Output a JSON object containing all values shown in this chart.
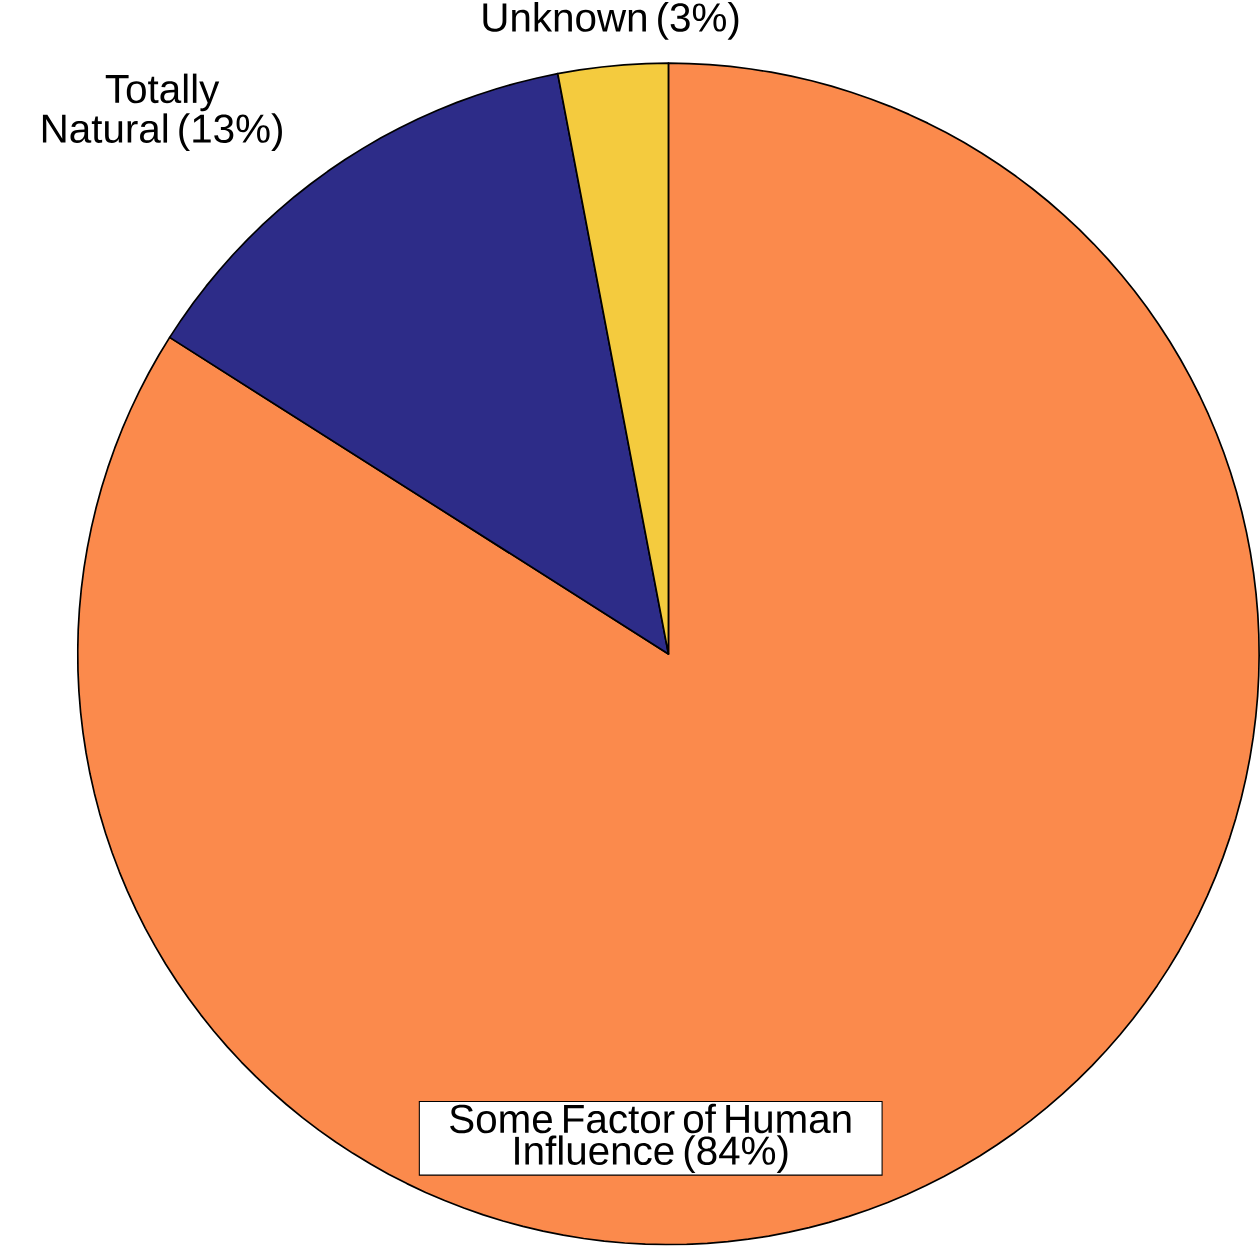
{
  "chart_data": {
    "type": "pie",
    "categories": [
      "Some Factor of Human Influence (84%)",
      "Totally Natural (13%)",
      "Unknown (3%)"
    ],
    "values": [
      84,
      13,
      3
    ],
    "colors": [
      "#fb8a4c",
      "#2d2c88",
      "#f4cb3e"
    ]
  }
}
